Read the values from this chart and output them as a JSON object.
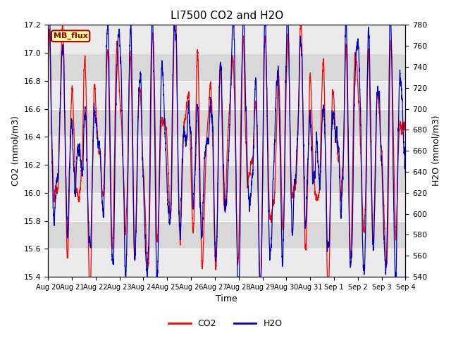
{
  "title": "LI7500 CO2 and H2O",
  "xlabel": "Time",
  "ylabel_left": "CO2 (mmol/m3)",
  "ylabel_right": "H2O (mmol/m3)",
  "co2_ylim": [
    15.4,
    17.2
  ],
  "h2o_ylim": [
    540,
    780
  ],
  "co2_yticks": [
    15.4,
    15.6,
    15.8,
    16.0,
    16.2,
    16.4,
    16.6,
    16.8,
    17.0,
    17.2
  ],
  "h2o_yticks": [
    540,
    560,
    580,
    600,
    620,
    640,
    660,
    680,
    700,
    720,
    740,
    760,
    780
  ],
  "xtick_labels": [
    "Aug 20",
    "Aug 21",
    "Aug 22",
    "Aug 23",
    "Aug 24",
    "Aug 25",
    "Aug 26",
    "Aug 27",
    "Aug 28",
    "Aug 29",
    "Aug 30",
    "Aug 31",
    "Sep 1",
    "Sep 2",
    "Sep 3",
    "Sep 4"
  ],
  "n_days": 15,
  "legend_label_co2": "CO2",
  "legend_label_h2o": "H2O",
  "co2_color": "#FF0000",
  "h2o_color": "#0000BB",
  "annotation_text": "MB_flux",
  "annotation_bg": "#FFFF99",
  "annotation_border": "#AA0000",
  "plot_bg_light": "#EBEBEB",
  "plot_bg_dark": "#D8D8D8",
  "grid_color": "#FFFFFF",
  "seed": 12345
}
